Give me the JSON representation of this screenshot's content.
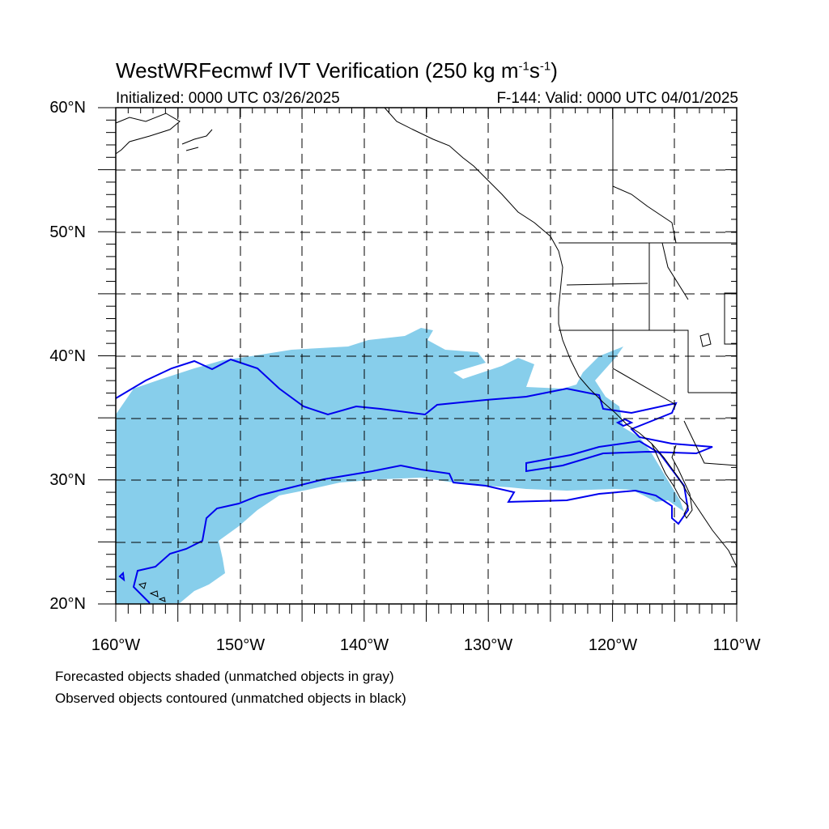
{
  "title": {
    "main": "WestWRFecmwf IVT Verification (250 kg m",
    "sup1": "-1",
    "mid": "s",
    "sup2": "-1",
    "end": ")"
  },
  "initialized": "Initialized: 0000 UTC 03/26/2025",
  "valid": "F-144: Valid: 0000 UTC 04/01/2025",
  "lat_labels": [
    "60°N",
    "50°N",
    "40°N",
    "30°N",
    "20°N"
  ],
  "lon_labels": [
    "160°W",
    "150°W",
    "140°W",
    "130°W",
    "120°W",
    "110°W"
  ],
  "captions": [
    "Forecasted objects shaded (unmatched objects in gray)",
    "Observed objects contoured (unmatched objects in black)"
  ],
  "map_extent": {
    "lon_min": -160,
    "lon_max": -110,
    "lat_min": 20,
    "lat_max": 60
  },
  "colors": {
    "forecast_fill": "#87ceeb",
    "observed_contour": "#0000ee",
    "coastline": "#000000",
    "grid": "#000000"
  }
}
